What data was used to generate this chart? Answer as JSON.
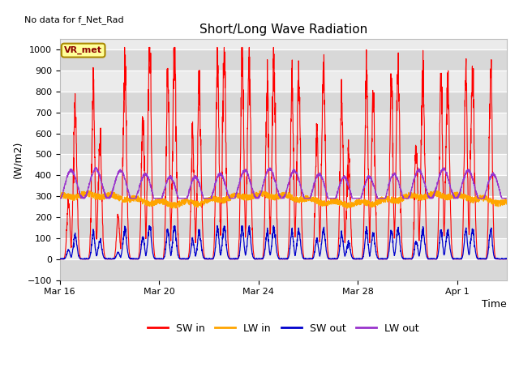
{
  "title": "Short/Long Wave Radiation",
  "top_left_text": "No data for f_Net_Rad",
  "ylabel": "(W/m2)",
  "xlabel": "Time",
  "ylim": [
    -100,
    1050
  ],
  "xlim_days": [
    0,
    18.0
  ],
  "yticks": [
    -100,
    0,
    100,
    200,
    300,
    400,
    500,
    600,
    700,
    800,
    900,
    1000
  ],
  "xtick_labels": [
    "Mar 16",
    "Mar 20",
    "Mar 24",
    "Mar 28",
    "Apr 1"
  ],
  "xtick_positions": [
    0,
    4,
    8,
    12,
    16
  ],
  "series_colors": {
    "SW_in": "#ff0000",
    "LW_in": "#ffa500",
    "SW_out": "#0000cc",
    "LW_out": "#9933cc"
  },
  "legend_labels": [
    "SW in",
    "LW in",
    "SW out",
    "LW out"
  ],
  "legend_colors": [
    "#ff0000",
    "#ffa500",
    "#0000cc",
    "#9933cc"
  ],
  "vr_met_box_color": "#ffff99",
  "vr_met_border_color": "#aa8800",
  "bg_color_light": "#ebebeb",
  "bg_color_dark": "#d8d8d8",
  "grid_color": "#ffffff",
  "n_days": 18,
  "samples_per_day": 144,
  "lw_in_base": 290,
  "lw_in_noise": 20,
  "sw_out_scale": 0.15,
  "lw_out_base": 340,
  "lw_out_amplitude": 70,
  "fig_width": 6.4,
  "fig_height": 4.8,
  "dpi": 100
}
